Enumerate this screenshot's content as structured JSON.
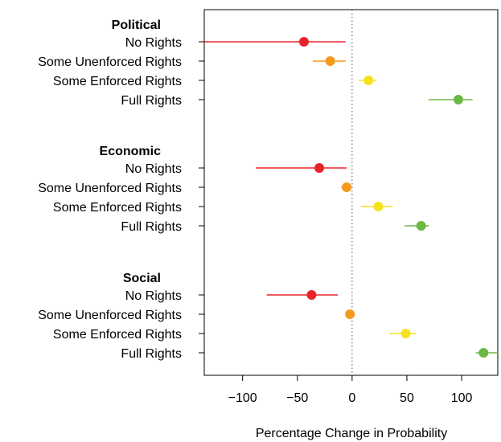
{
  "chart_data": {
    "type": "scatter",
    "title": "",
    "xlabel": "Percentage Change in Probability",
    "xlim": [
      -135,
      133
    ],
    "xticks": [
      -100,
      -50,
      0,
      50,
      100
    ],
    "xtick_labels": [
      "−100",
      "−50",
      "0",
      "50",
      "100"
    ],
    "reference_line": {
      "x": 0,
      "style": "dotted"
    },
    "grid": false,
    "colors": {
      "No Rights": "#e8242a",
      "Some Unenforced Rights": "#f39a1e",
      "Some Enforced Rights": "#f5e21e",
      "Full Rights": "#6bb844"
    },
    "groups": [
      {
        "name": "Political",
        "items": [
          {
            "label": "No Rights",
            "estimate": -44,
            "low": -135,
            "high": -6
          },
          {
            "label": "Some Unenforced Rights",
            "estimate": -20,
            "low": -36,
            "high": -6
          },
          {
            "label": "Some Enforced Rights",
            "estimate": 15,
            "low": 6,
            "high": 22
          },
          {
            "label": "Full Rights",
            "estimate": 97,
            "low": 70,
            "high": 110
          }
        ]
      },
      {
        "name": "Economic",
        "items": [
          {
            "label": "No Rights",
            "estimate": -30,
            "low": -88,
            "high": -5
          },
          {
            "label": "Some Unenforced Rights",
            "estimate": -5,
            "low": -10,
            "high": -1
          },
          {
            "label": "Some Enforced Rights",
            "estimate": 24,
            "low": 8,
            "high": 37
          },
          {
            "label": "Full Rights",
            "estimate": 63,
            "low": 48,
            "high": 70
          }
        ]
      },
      {
        "name": "Social",
        "items": [
          {
            "label": "No Rights",
            "estimate": -37,
            "low": -78,
            "high": -13
          },
          {
            "label": "Some Unenforced Rights",
            "estimate": -2,
            "low": -6,
            "high": 1
          },
          {
            "label": "Some Enforced Rights",
            "estimate": 49,
            "low": 34,
            "high": 58
          },
          {
            "label": "Full Rights",
            "estimate": 120,
            "low": 113,
            "high": 133
          }
        ]
      }
    ]
  }
}
